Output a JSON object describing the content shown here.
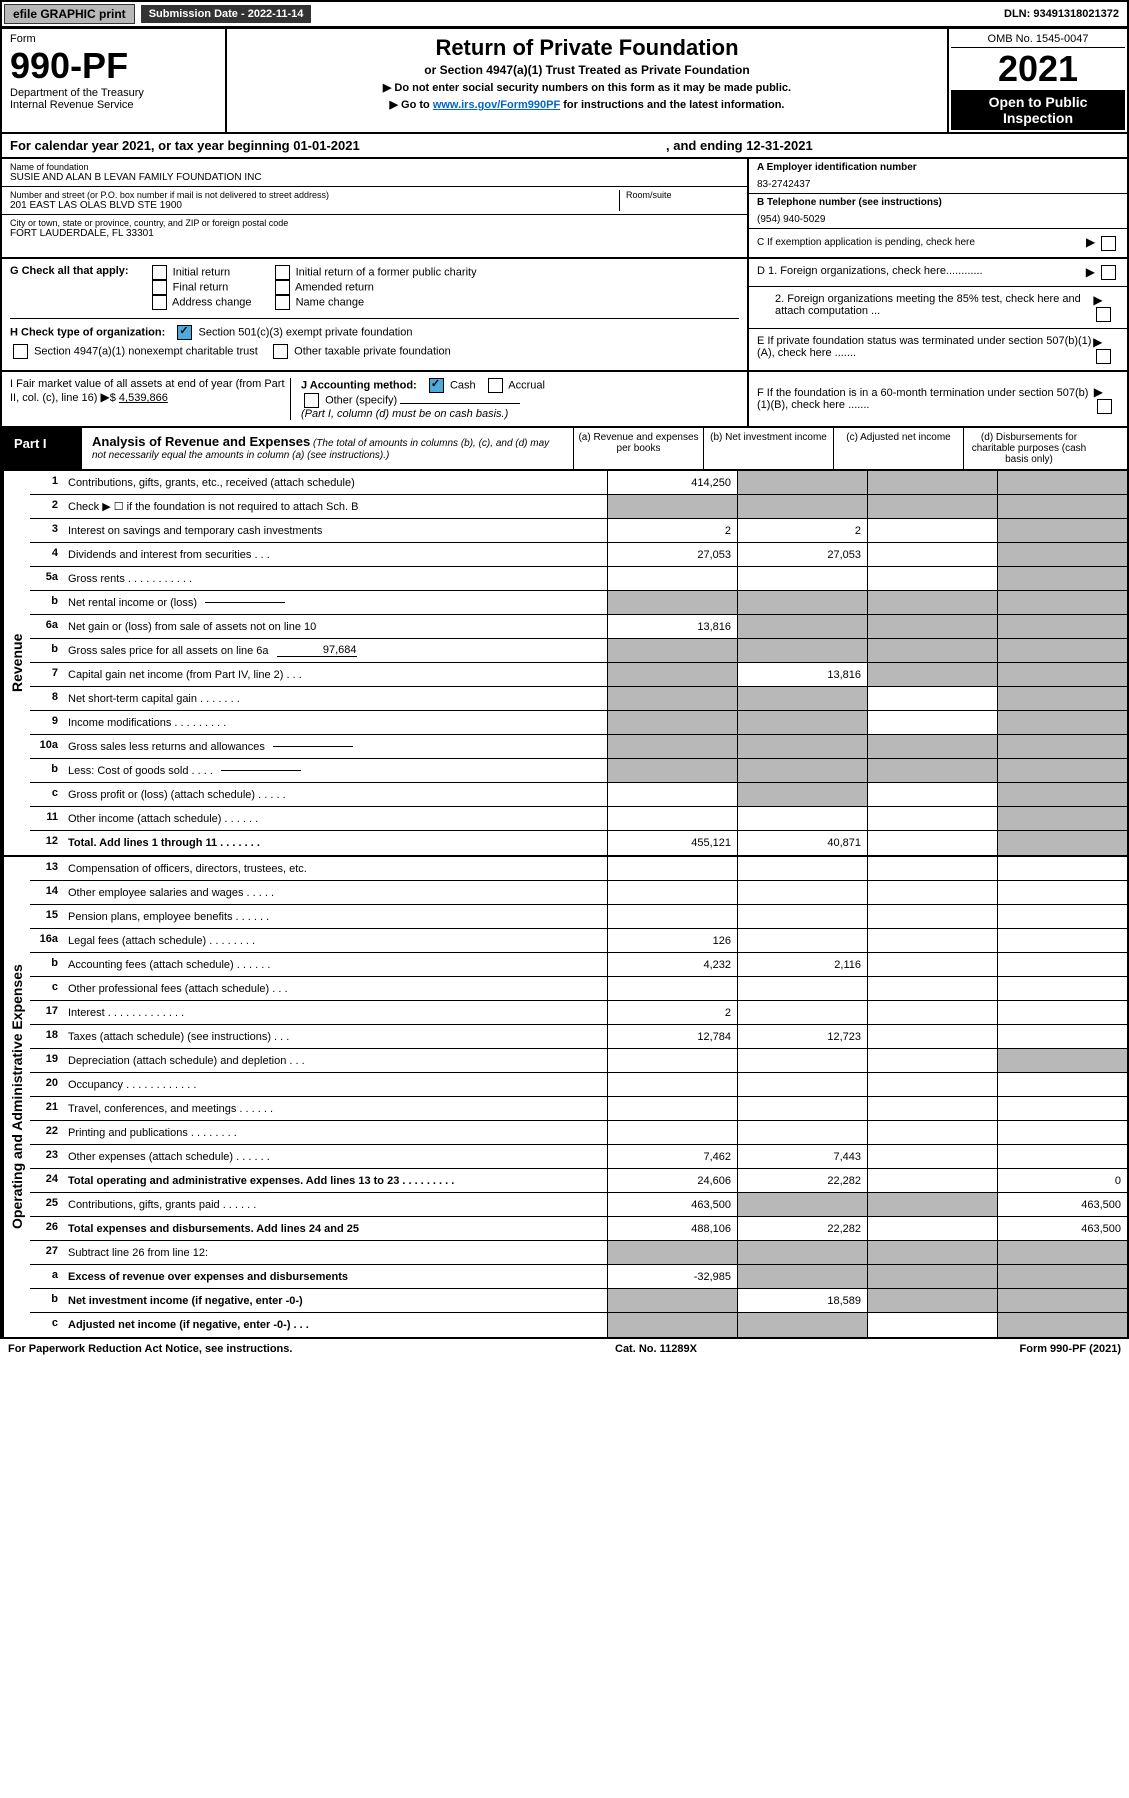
{
  "top": {
    "efile_btn": "efile GRAPHIC print",
    "sub_date_label": "Submission Date - 2022-11-14",
    "dln": "DLN: 93491318021372"
  },
  "header": {
    "form_label": "Form",
    "form_num": "990-PF",
    "dept": "Department of the Treasury",
    "irs": "Internal Revenue Service",
    "title": "Return of Private Foundation",
    "subtitle": "or Section 4947(a)(1) Trust Treated as Private Foundation",
    "note1": "▶ Do not enter social security numbers on this form as it may be made public.",
    "note2_pre": "▶ Go to ",
    "note2_link": "www.irs.gov/Form990PF",
    "note2_post": " for instructions and the latest information.",
    "omb": "OMB No. 1545-0047",
    "year": "2021",
    "open": "Open to Public Inspection"
  },
  "cal_year": {
    "text_pre": "For calendar year 2021, or tax year beginning 01-01-2021",
    "text_mid": ", and ending 12-31-2021"
  },
  "id": {
    "name_label": "Name of foundation",
    "name": "SUSIE AND ALAN B LEVAN FAMILY FOUNDATION INC",
    "addr_label": "Number and street (or P.O. box number if mail is not delivered to street address)",
    "addr": "201 EAST LAS OLAS BLVD STE 1900",
    "room_label": "Room/suite",
    "city_label": "City or town, state or province, country, and ZIP or foreign postal code",
    "city": "FORT LAUDERDALE, FL  33301",
    "a_label": "A Employer identification number",
    "ein": "83-2742437",
    "b_label": "B Telephone number (see instructions)",
    "phone": "(954) 940-5029",
    "c_label": "C If exemption application is pending, check here"
  },
  "g_h": {
    "g_label": "G Check all that apply:",
    "g_initial": "Initial return",
    "g_final": "Final return",
    "g_addr": "Address change",
    "g_initial_former": "Initial return of a former public charity",
    "g_amended": "Amended return",
    "g_name": "Name change",
    "h_label": "H Check type of organization:",
    "h_501c3": "Section 501(c)(3) exempt private foundation",
    "h_4947": "Section 4947(a)(1) nonexempt charitable trust",
    "h_other": "Other taxable private foundation",
    "d1": "D 1. Foreign organizations, check here............",
    "d2": "2. Foreign organizations meeting the 85% test, check here and attach computation ...",
    "e": "E  If private foundation status was terminated under section 507(b)(1)(A), check here .......",
    "f": "F  If the foundation is in a 60-month termination under section 507(b)(1)(B), check here ......."
  },
  "ij": {
    "i_label": "I Fair market value of all assets at end of year (from Part II, col. (c), line 16)",
    "i_val": "4,539,866",
    "j_label": "J Accounting method:",
    "j_cash": "Cash",
    "j_accrual": "Accrual",
    "j_other": "Other (specify)",
    "j_note": "(Part I, column (d) must be on cash basis.)"
  },
  "part1": {
    "label": "Part I",
    "title": "Analysis of Revenue and Expenses",
    "note": " (The total of amounts in columns (b), (c), and (d) may not necessarily equal the amounts in column (a) (see instructions).)",
    "col_a": "(a)   Revenue and expenses per books",
    "col_b": "(b)   Net investment income",
    "col_c": "(c)   Adjusted net income",
    "col_d": "(d)   Disbursements for charitable purposes (cash basis only)"
  },
  "sections": {
    "revenue": "Revenue",
    "opex": "Operating and Administrative Expenses"
  },
  "rows": [
    {
      "n": "1",
      "desc": "Contributions, gifts, grants, etc., received (attach schedule)",
      "a": "414,250",
      "b": "",
      "c": "",
      "d": "",
      "shade_b": true,
      "shade_c": true,
      "shade_d": true
    },
    {
      "n": "2",
      "desc": "Check ▶ ☐ if the foundation is not required to attach Sch. B",
      "a": "",
      "b": "",
      "c": "",
      "d": "",
      "shade_a": true,
      "shade_b": true,
      "shade_c": true,
      "shade_d": true
    },
    {
      "n": "3",
      "desc": "Interest on savings and temporary cash investments",
      "a": "2",
      "b": "2",
      "c": "",
      "d": "",
      "shade_d": true
    },
    {
      "n": "4",
      "desc": "Dividends and interest from securities   .   .   .",
      "a": "27,053",
      "b": "27,053",
      "c": "",
      "d": "",
      "shade_d": true
    },
    {
      "n": "5a",
      "desc": "Gross rents   .   .   .   .   .   .   .   .   .   .   .",
      "a": "",
      "b": "",
      "c": "",
      "d": "",
      "shade_d": true
    },
    {
      "n": "b",
      "desc": "Net rental income or (loss)",
      "a": "",
      "b": "",
      "c": "",
      "d": "",
      "shade_a": true,
      "shade_b": true,
      "shade_c": true,
      "shade_d": true,
      "inline": true
    },
    {
      "n": "6a",
      "desc": "Net gain or (loss) from sale of assets not on line 10",
      "a": "13,816",
      "b": "",
      "c": "",
      "d": "",
      "shade_b": true,
      "shade_c": true,
      "shade_d": true
    },
    {
      "n": "b",
      "desc": "Gross sales price for all assets on line 6a",
      "a": "",
      "b": "",
      "c": "",
      "d": "",
      "inline": true,
      "inline_val": "97,684",
      "shade_a": true,
      "shade_b": true,
      "shade_c": true,
      "shade_d": true
    },
    {
      "n": "7",
      "desc": "Capital gain net income (from Part IV, line 2)   .   .   .",
      "a": "",
      "b": "13,816",
      "c": "",
      "d": "",
      "shade_a": true,
      "shade_c": true,
      "shade_d": true
    },
    {
      "n": "8",
      "desc": "Net short-term capital gain   .   .   .   .   .   .   .",
      "a": "",
      "b": "",
      "c": "",
      "d": "",
      "shade_a": true,
      "shade_b": true,
      "shade_d": true
    },
    {
      "n": "9",
      "desc": "Income modifications  .   .   .   .   .   .   .   .   .",
      "a": "",
      "b": "",
      "c": "",
      "d": "",
      "shade_a": true,
      "shade_b": true,
      "shade_d": true
    },
    {
      "n": "10a",
      "desc": "Gross sales less returns and allowances",
      "a": "",
      "b": "",
      "c": "",
      "d": "",
      "inline": true,
      "shade_a": true,
      "shade_b": true,
      "shade_c": true,
      "shade_d": true
    },
    {
      "n": "b",
      "desc": "Less: Cost of goods sold   .   .   .   .",
      "a": "",
      "b": "",
      "c": "",
      "d": "",
      "inline": true,
      "shade_a": true,
      "shade_b": true,
      "shade_c": true,
      "shade_d": true
    },
    {
      "n": "c",
      "desc": "Gross profit or (loss) (attach schedule)   .   .   .   .   .",
      "a": "",
      "b": "",
      "c": "",
      "d": "",
      "shade_b": true,
      "shade_d": true
    },
    {
      "n": "11",
      "desc": "Other income (attach schedule)   .   .   .   .   .   .",
      "a": "",
      "b": "",
      "c": "",
      "d": "",
      "shade_d": true
    },
    {
      "n": "12",
      "desc": "Total. Add lines 1 through 11   .   .   .   .   .   .   .",
      "a": "455,121",
      "b": "40,871",
      "c": "",
      "d": "",
      "bold": true,
      "shade_d": true
    }
  ],
  "exp_rows": [
    {
      "n": "13",
      "desc": "Compensation of officers, directors, trustees, etc.",
      "a": "",
      "b": "",
      "c": "",
      "d": ""
    },
    {
      "n": "14",
      "desc": "Other employee salaries and wages   .   .   .   .   .",
      "a": "",
      "b": "",
      "c": "",
      "d": ""
    },
    {
      "n": "15",
      "desc": "Pension plans, employee benefits  .   .   .   .   .   .",
      "a": "",
      "b": "",
      "c": "",
      "d": ""
    },
    {
      "n": "16a",
      "desc": "Legal fees (attach schedule)  .   .   .   .   .   .   .   .",
      "a": "126",
      "b": "",
      "c": "",
      "d": ""
    },
    {
      "n": "b",
      "desc": "Accounting fees (attach schedule)  .   .   .   .   .   .",
      "a": "4,232",
      "b": "2,116",
      "c": "",
      "d": ""
    },
    {
      "n": "c",
      "desc": "Other professional fees (attach schedule)   .   .   .",
      "a": "",
      "b": "",
      "c": "",
      "d": ""
    },
    {
      "n": "17",
      "desc": "Interest  .   .   .   .   .   .   .   .   .   .   .   .   .",
      "a": "2",
      "b": "",
      "c": "",
      "d": ""
    },
    {
      "n": "18",
      "desc": "Taxes (attach schedule) (see instructions)   .   .   .",
      "a": "12,784",
      "b": "12,723",
      "c": "",
      "d": ""
    },
    {
      "n": "19",
      "desc": "Depreciation (attach schedule) and depletion   .   .   .",
      "a": "",
      "b": "",
      "c": "",
      "d": "",
      "shade_d": true
    },
    {
      "n": "20",
      "desc": "Occupancy  .   .   .   .   .   .   .   .   .   .   .   .",
      "a": "",
      "b": "",
      "c": "",
      "d": ""
    },
    {
      "n": "21",
      "desc": "Travel, conferences, and meetings  .   .   .   .   .   .",
      "a": "",
      "b": "",
      "c": "",
      "d": ""
    },
    {
      "n": "22",
      "desc": "Printing and publications  .   .   .   .   .   .   .   .",
      "a": "",
      "b": "",
      "c": "",
      "d": ""
    },
    {
      "n": "23",
      "desc": "Other expenses (attach schedule)  .   .   .   .   .   .",
      "a": "7,462",
      "b": "7,443",
      "c": "",
      "d": ""
    },
    {
      "n": "24",
      "desc": "Total operating and administrative expenses. Add lines 13 to 23   .   .   .   .   .   .   .   .   .",
      "a": "24,606",
      "b": "22,282",
      "c": "",
      "d": "0",
      "bold": true
    },
    {
      "n": "25",
      "desc": "Contributions, gifts, grants paid   .   .   .   .   .   .",
      "a": "463,500",
      "b": "",
      "c": "",
      "d": "463,500",
      "shade_b": true,
      "shade_c": true
    },
    {
      "n": "26",
      "desc": "Total expenses and disbursements. Add lines 24 and 25",
      "a": "488,106",
      "b": "22,282",
      "c": "",
      "d": "463,500",
      "bold": true
    },
    {
      "n": "27",
      "desc": "Subtract line 26 from line 12:",
      "a": "",
      "b": "",
      "c": "",
      "d": "",
      "shade_a": true,
      "shade_b": true,
      "shade_c": true,
      "shade_d": true
    },
    {
      "n": "a",
      "desc": "Excess of revenue over expenses and disbursements",
      "a": "-32,985",
      "b": "",
      "c": "",
      "d": "",
      "bold": true,
      "shade_b": true,
      "shade_c": true,
      "shade_d": true
    },
    {
      "n": "b",
      "desc": "Net investment income (if negative, enter -0-)",
      "a": "",
      "b": "18,589",
      "c": "",
      "d": "",
      "bold": true,
      "shade_a": true,
      "shade_c": true,
      "shade_d": true
    },
    {
      "n": "c",
      "desc": "Adjusted net income (if negative, enter -0-)   .   .   .",
      "a": "",
      "b": "",
      "c": "",
      "d": "",
      "bold": true,
      "shade_a": true,
      "shade_b": true,
      "shade_d": true
    }
  ],
  "footer": {
    "left": "For Paperwork Reduction Act Notice, see instructions.",
    "mid": "Cat. No. 11289X",
    "right": "Form 990-PF (2021)"
  },
  "style": {
    "shade_color": "#b8b8b8",
    "link_color": "#0066cc",
    "font_body": 11,
    "border_color": "#000000"
  }
}
